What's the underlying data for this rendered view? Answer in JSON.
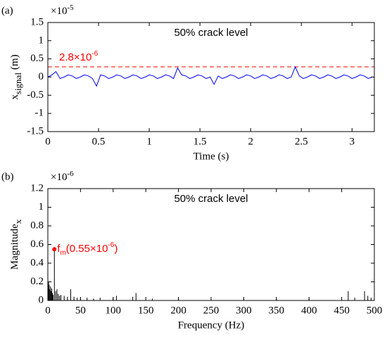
{
  "chart_data": [
    {
      "type": "line",
      "panel_label": "(a)",
      "annotation": "50% crack level",
      "xlabel": "Time (s)",
      "ylabel": {
        "main": "x",
        "sub": "signal",
        "unit": "(m)"
      },
      "y_multiplier": {
        "base": "×10",
        "exponent": "-5"
      },
      "threshold": {
        "value": 0.28,
        "label": "2.8×10",
        "exponent": "-6",
        "color": "#ff0000"
      },
      "color": "#0000ff",
      "x": [
        0,
        0.04,
        0.08,
        0.12,
        0.16,
        0.2,
        0.24,
        0.28,
        0.32,
        0.36,
        0.4,
        0.44,
        0.48,
        0.52,
        0.56,
        0.6,
        0.64,
        0.68,
        0.72,
        0.76,
        0.8,
        0.84,
        0.88,
        0.92,
        0.96,
        1,
        1.04,
        1.08,
        1.12,
        1.16,
        1.2,
        1.24,
        1.28,
        1.32,
        1.36,
        1.4,
        1.44,
        1.48,
        1.52,
        1.56,
        1.6,
        1.64,
        1.68,
        1.72,
        1.76,
        1.8,
        1.84,
        1.88,
        1.92,
        1.96,
        2,
        2.04,
        2.08,
        2.12,
        2.16,
        2.2,
        2.24,
        2.28,
        2.32,
        2.36,
        2.4,
        2.44,
        2.48,
        2.52,
        2.56,
        2.6,
        2.64,
        2.68,
        2.72,
        2.76,
        2.8,
        2.84,
        2.88,
        2.92,
        2.96,
        3,
        3.04,
        3.08,
        3.12,
        3.16,
        3.2
      ],
      "values": [
        0,
        0.06,
        0.15,
        -0.04,
        0,
        0.06,
        0.03,
        -0.04,
        0,
        0.06,
        0.03,
        -0.04,
        -0.25,
        0.06,
        0.03,
        -0.04,
        0,
        0.06,
        0.03,
        -0.04,
        0,
        0.06,
        0.03,
        -0.04,
        0,
        0.06,
        0.03,
        -0.04,
        0,
        0.06,
        0.03,
        -0.04,
        0.25,
        0.06,
        0.03,
        -0.04,
        0,
        0.06,
        0.03,
        -0.04,
        0,
        -0.2,
        0.03,
        -0.04,
        0,
        0.06,
        0.03,
        -0.04,
        0,
        0.06,
        0.03,
        -0.04,
        0,
        0.06,
        0.03,
        -0.04,
        0,
        0.06,
        0.03,
        -0.04,
        0,
        0.28,
        0.03,
        -0.04,
        0,
        0.06,
        0.03,
        -0.04,
        0,
        0.06,
        0.03,
        -0.04,
        0,
        0.06,
        0.03,
        -0.04,
        0,
        0.06,
        0.03,
        -0.04,
        0
      ],
      "xlim": [
        0,
        3.22
      ],
      "xticks": [
        0,
        0.5,
        1,
        1.5,
        2,
        2.5,
        3
      ],
      "ylim": [
        -1.5,
        1.5
      ],
      "yticks": [
        -1.5,
        -1,
        -0.5,
        0,
        0.5,
        1,
        1.5
      ]
    },
    {
      "type": "stem",
      "panel_label": "(b)",
      "annotation": "50% crack level",
      "xlabel": "Frequency (Hz)",
      "ylabel": {
        "main": "Magnitude",
        "sub": "x"
      },
      "y_multiplier": {
        "base": "×10",
        "exponent": "-6"
      },
      "color": "#000000",
      "peak_index": 8,
      "peak_label": {
        "name": "f",
        "sub": "m",
        "text": "(0.55×10",
        "exponent": "-6",
        "close": ")",
        "color": "#ff0000"
      },
      "x": [
        1,
        2,
        3,
        4,
        5,
        6,
        7,
        8,
        10,
        12,
        14,
        16,
        18,
        20,
        25,
        30,
        35,
        40,
        45,
        50,
        60,
        70,
        80,
        100,
        105,
        130,
        135,
        160,
        200,
        250,
        300,
        350,
        400,
        460,
        470,
        485,
        490,
        495
      ],
      "values": [
        0.2,
        0.17,
        0.12,
        0.15,
        0.1,
        0.13,
        0.08,
        0.06,
        0.55,
        0.1,
        0.12,
        0.07,
        0.05,
        0.06,
        0.05,
        0.04,
        0.12,
        0.04,
        0.03,
        0.03,
        0.03,
        0.02,
        0.03,
        0.03,
        0.05,
        0.04,
        0.08,
        0.02,
        0.02,
        0.02,
        0.02,
        0.02,
        0.02,
        0.1,
        0.03,
        0.1,
        0.05,
        0.03
      ],
      "xlim": [
        0,
        500
      ],
      "xticks": [
        0,
        50,
        100,
        150,
        200,
        250,
        300,
        350,
        400,
        450,
        500
      ],
      "ylim": [
        0,
        1.2
      ],
      "yticks": [
        0,
        0.2,
        0.4,
        0.6,
        0.8,
        1,
        1.2
      ]
    }
  ]
}
